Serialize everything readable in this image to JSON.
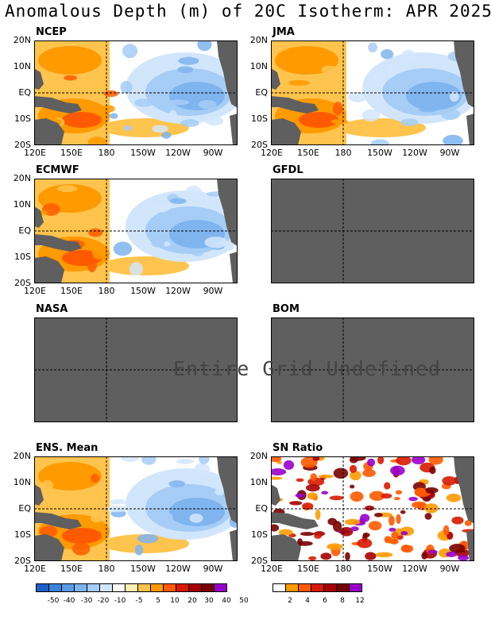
{
  "title": "Anomalous Depth (m) of 20C Isotherm: APR 2025",
  "lat_labels": [
    "20N",
    "10N",
    "EQ",
    "10S",
    "20S"
  ],
  "lon_labels": [
    "120E",
    "150E",
    "180",
    "150W",
    "120W",
    "90W"
  ],
  "panels": [
    {
      "id": "ncep",
      "label": "NCEP",
      "defined": true
    },
    {
      "id": "jma",
      "label": "JMA",
      "defined": true
    },
    {
      "id": "ecmwf",
      "label": "ECMWF",
      "defined": true
    },
    {
      "id": "gfdl",
      "label": "GFDL",
      "defined": false
    },
    {
      "id": "nasa",
      "label": "NASA",
      "defined": false
    },
    {
      "id": "bom",
      "label": "BOM",
      "defined": false
    },
    {
      "id": "ens",
      "label": "ENS. Mean",
      "defined": true
    },
    {
      "id": "sn",
      "label": "SN Ratio",
      "defined": true
    }
  ],
  "undefined_message": "Entire Grid Undefined",
  "anomaly_colorbar": {
    "colors": [
      "#1f5fc8",
      "#3b82dc",
      "#5a9be6",
      "#7fb4ee",
      "#a6cdf6",
      "#d2e6fb",
      "#ffffff",
      "#ffefb0",
      "#ffc44d",
      "#ff9a00",
      "#ff5a00",
      "#d81a00",
      "#a60000",
      "#7a0000",
      "#9a00cc"
    ],
    "ticks": [
      "-50",
      "-40",
      "-30",
      "-20",
      "-10",
      "-5",
      "5",
      "10",
      "20",
      "30",
      "40",
      "50"
    ]
  },
  "sn_colorbar": {
    "colors": [
      "#ffffff",
      "#ff9a00",
      "#ff5a00",
      "#d81a00",
      "#a60000",
      "#7a0000",
      "#9a00cc"
    ],
    "ticks": [
      "2",
      "4",
      "6",
      "8",
      "12"
    ]
  },
  "land_color": "#5f5f5f"
}
